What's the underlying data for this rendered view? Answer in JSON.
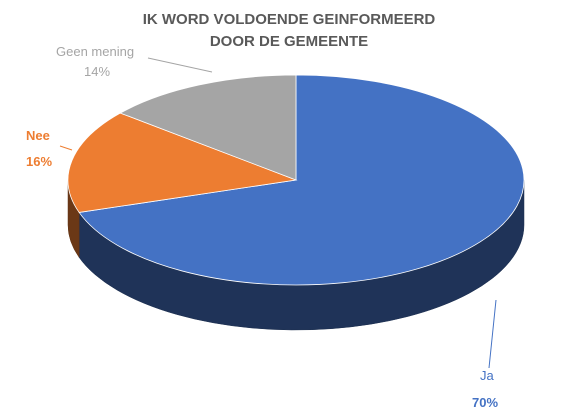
{
  "chart_data": {
    "type": "pie3d",
    "title": "IK WORD VOLDOENDE GEINFORMEERD DOOR DE GEMEENTE",
    "categories": [
      "Ja",
      "Nee",
      "Geen mening"
    ],
    "values": [
      70,
      16,
      14
    ],
    "value_labels": [
      "70%",
      "16%",
      "14%"
    ],
    "colors": [
      "#4472c4",
      "#ed7d31",
      "#a5a5a5"
    ]
  }
}
